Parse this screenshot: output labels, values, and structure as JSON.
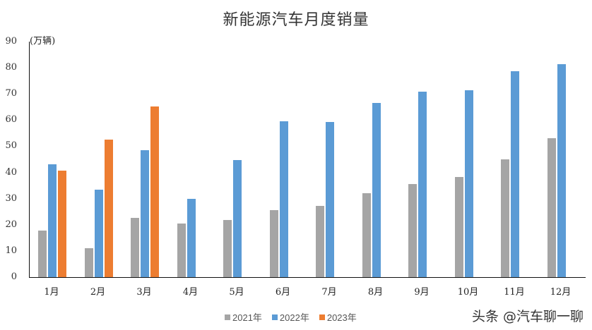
{
  "chart_data": {
    "type": "bar",
    "title": "新能源汽车月度销量",
    "xlabel": "",
    "ylabel": "(万辆)",
    "ylim": [
      0,
      90
    ],
    "yticks": [
      0,
      10,
      20,
      30,
      40,
      50,
      60,
      70,
      80,
      90
    ],
    "grid": false,
    "legend_position": "bottom",
    "categories": [
      "1月",
      "2月",
      "3月",
      "4月",
      "5月",
      "6月",
      "7月",
      "8月",
      "9月",
      "10月",
      "11月",
      "12月"
    ],
    "series": [
      {
        "name": "2021年",
        "color": "#a5a5a5",
        "values": [
          17.9,
          11.0,
          22.6,
          20.6,
          21.7,
          25.6,
          27.1,
          32.1,
          35.7,
          38.3,
          45.0,
          53.1
        ]
      },
      {
        "name": "2022年",
        "color": "#5b9bd5",
        "values": [
          43.1,
          33.4,
          48.4,
          29.9,
          44.7,
          59.6,
          59.3,
          66.6,
          70.8,
          71.4,
          78.7,
          81.4
        ]
      },
      {
        "name": "2023年",
        "color": "#ed7d31",
        "values": [
          40.8,
          52.5,
          65.3,
          null,
          null,
          null,
          null,
          null,
          null,
          null,
          null,
          null
        ]
      }
    ]
  },
  "header": {
    "title": "新能源汽车月度销量"
  },
  "axis": {
    "unit": "(万辆)"
  },
  "watermark": "头条 @汽车聊一聊"
}
